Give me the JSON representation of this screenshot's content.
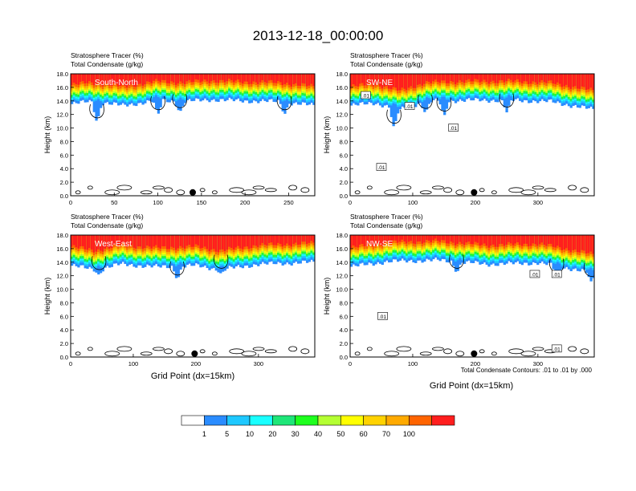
{
  "page": {
    "title": "2013-12-18_00:00:00",
    "x_label": "Grid Point (dx=15km)",
    "contour_note": "Total Condensate Contours: .01 to .01 by .000"
  },
  "colorbar": {
    "colors": [
      "#ffffff",
      "#2a8cff",
      "#1ec8ff",
      "#19ffff",
      "#1ee678",
      "#1eff1e",
      "#b4ff32",
      "#ffff00",
      "#ffd200",
      "#ffaa00",
      "#ff6400",
      "#ff1e1e"
    ],
    "labels": [
      "1",
      "5",
      "10",
      "20",
      "30",
      "40",
      "50",
      "60",
      "70",
      "100"
    ]
  },
  "chart_data": [
    {
      "type": "heatmap",
      "panel": "top-left",
      "cross_section": "South-North",
      "title_lines": [
        "Stratosphere Tracer   (%)",
        "Total Condensate   (g/kg)"
      ],
      "ylabel": "Height (km)",
      "xlim": [
        0,
        280
      ],
      "ylim": [
        0,
        18
      ],
      "xticks": [
        0,
        50,
        100,
        150,
        200,
        250
      ],
      "yticks": [
        "0.0",
        "2.0",
        "4.0",
        "6.0",
        "8.0",
        "10.0",
        "12.0",
        "14.0",
        "16.0",
        "18.0"
      ],
      "tropopause_km": [
        [
          0,
          14.8
        ],
        [
          20,
          15.2
        ],
        [
          40,
          15.0
        ],
        [
          60,
          14.6
        ],
        [
          80,
          15.0
        ],
        [
          100,
          15.4
        ],
        [
          130,
          15.2
        ],
        [
          160,
          15.5
        ],
        [
          200,
          15.3
        ],
        [
          240,
          15.2
        ],
        [
          280,
          14.6
        ]
      ],
      "cloud_dips": [
        [
          30,
          12.0
        ],
        [
          100,
          13.2
        ],
        [
          125,
          13.5
        ],
        [
          245,
          13.2
        ]
      ],
      "contour_label": ".01",
      "contour_label_positions": [],
      "marker_x": 140
    },
    {
      "type": "heatmap",
      "panel": "top-right",
      "cross_section": "SW-NE",
      "title_lines": [
        "Stratosphere Tracer   (%)",
        "Total Condensate   (g/kg)"
      ],
      "ylabel": "Height (km)",
      "xlim": [
        0,
        390
      ],
      "ylim": [
        0,
        18
      ],
      "xticks": [
        0,
        100,
        200,
        300
      ],
      "yticks": [
        "0.0",
        "2.0",
        "4.0",
        "6.0",
        "8.0",
        "10.0",
        "12.0",
        "14.0",
        "16.0",
        "18.0"
      ],
      "tropopause_km": [
        [
          0,
          14.6
        ],
        [
          40,
          15.0
        ],
        [
          80,
          14.0
        ],
        [
          120,
          15.2
        ],
        [
          180,
          15.4
        ],
        [
          260,
          15.4
        ],
        [
          320,
          15.2
        ],
        [
          390,
          14.0
        ]
      ],
      "cloud_dips": [
        [
          70,
          11.2
        ],
        [
          120,
          13.4
        ],
        [
          150,
          13.0
        ],
        [
          250,
          13.6
        ]
      ],
      "contour_label": ".01",
      "contour_label_positions": [
        [
          25,
          14.8
        ],
        [
          95,
          13.2
        ],
        [
          165,
          10.0
        ],
        [
          50,
          4.2
        ]
      ],
      "marker_x": 198
    },
    {
      "type": "heatmap",
      "panel": "bottom-left",
      "cross_section": "West-East",
      "title_lines": [
        "Stratosphere Tracer   (%)",
        "Total Condensate   (g/kg)"
      ],
      "ylabel": "Height (km)",
      "xlim": [
        0,
        390
      ],
      "ylim": [
        0,
        18
      ],
      "xticks": [
        0,
        100,
        200,
        300
      ],
      "yticks": [
        "0.0",
        "2.0",
        "4.0",
        "6.0",
        "8.0",
        "10.0",
        "12.0",
        "14.0",
        "16.0",
        "18.0"
      ],
      "tropopause_km": [
        [
          0,
          14.8
        ],
        [
          40,
          14.2
        ],
        [
          80,
          15.0
        ],
        [
          140,
          14.6
        ],
        [
          200,
          14.8
        ],
        [
          240,
          14.2
        ],
        [
          300,
          15.0
        ],
        [
          390,
          15.3
        ]
      ],
      "cloud_dips": [
        [
          45,
          13.4
        ],
        [
          170,
          12.6
        ],
        [
          240,
          13.6
        ]
      ],
      "contour_label": ".01",
      "contour_label_positions": [],
      "marker_x": 198
    },
    {
      "type": "heatmap",
      "panel": "bottom-right",
      "cross_section": "NW-SE",
      "title_lines": [
        "Stratosphere Tracer   (%)",
        "Total Condensate   (g/kg)"
      ],
      "ylabel": "Height (km)",
      "xlim": [
        0,
        390
      ],
      "ylim": [
        0,
        18
      ],
      "xticks": [
        0,
        100,
        200,
        300
      ],
      "yticks": [
        "0.0",
        "2.0",
        "4.0",
        "6.0",
        "8.0",
        "10.0",
        "12.0",
        "14.0",
        "16.0",
        "18.0"
      ],
      "tropopause_km": [
        [
          0,
          14.6
        ],
        [
          60,
          15.4
        ],
        [
          140,
          15.6
        ],
        [
          220,
          15.0
        ],
        [
          300,
          15.2
        ],
        [
          350,
          14.4
        ],
        [
          390,
          13.6
        ]
      ],
      "cloud_dips": [
        [
          170,
          13.6
        ],
        [
          330,
          13.0
        ],
        [
          385,
          12.4
        ]
      ],
      "contour_label": ".01",
      "contour_label_positions": [
        [
          295,
          12.2
        ],
        [
          330,
          12.2
        ],
        [
          52,
          6.0
        ],
        [
          330,
          1.2
        ]
      ],
      "marker_x": 198
    }
  ]
}
